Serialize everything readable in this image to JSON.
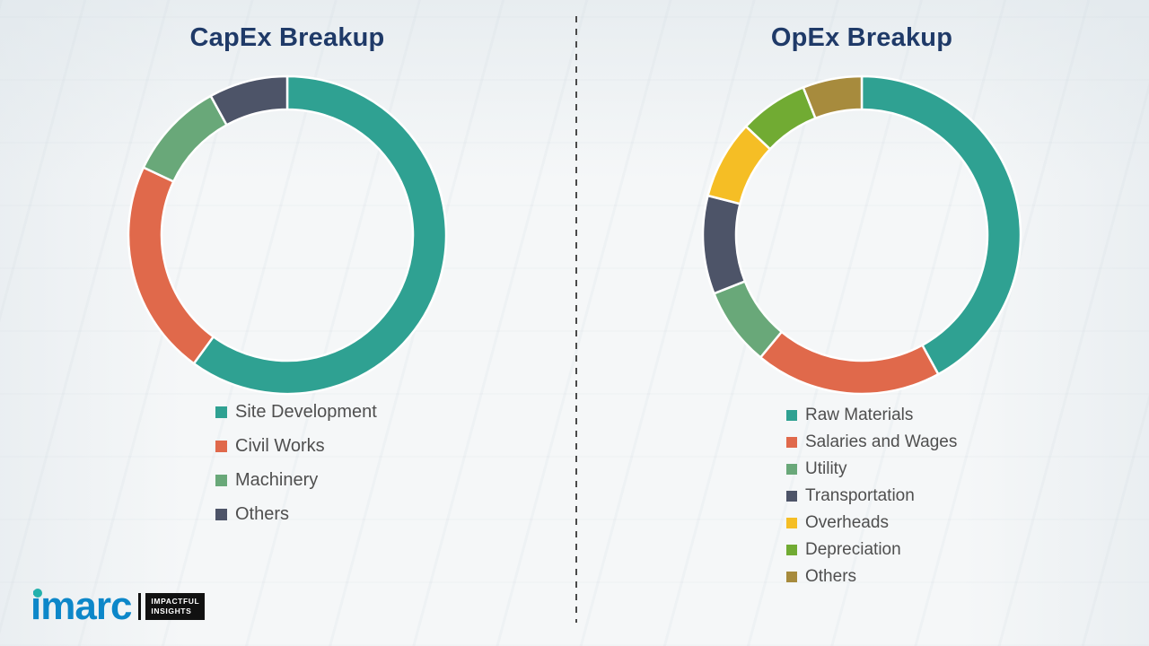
{
  "chart_data": [
    {
      "type": "pie",
      "subtype": "donut",
      "title": "CapEx Breakup",
      "labels": [
        "Site Development",
        "Civil Works",
        "Machinery",
        "Others"
      ],
      "values": [
        60,
        22,
        10,
        8
      ],
      "colors": [
        "#2FA192",
        "#E0694B",
        "#69A879",
        "#4D5468"
      ],
      "start_angle_deg": 0,
      "direction": "clockwise",
      "legend_position": "below-left"
    },
    {
      "type": "pie",
      "subtype": "donut",
      "title": "OpEx Breakup",
      "labels": [
        "Raw Materials",
        "Salaries and Wages",
        "Utility",
        "Transportation",
        "Overheads",
        "Depreciation",
        "Others"
      ],
      "values": [
        42,
        19,
        8,
        10,
        8,
        7,
        6
      ],
      "colors": [
        "#2FA192",
        "#E0694B",
        "#69A879",
        "#4D5468",
        "#F5BE25",
        "#71AB33",
        "#A78B3D"
      ],
      "start_angle_deg": 0,
      "direction": "clockwise",
      "legend_position": "below-left"
    }
  ],
  "logo": {
    "brand": "imarc",
    "tagline_line1": "IMPACTFUL",
    "tagline_line2": "INSIGHTS",
    "brand_color": "#0D87C9",
    "dot_color": "#23B1AC",
    "tagline_bg": "#111111",
    "tagline_text_color": "#FFFFFF"
  }
}
